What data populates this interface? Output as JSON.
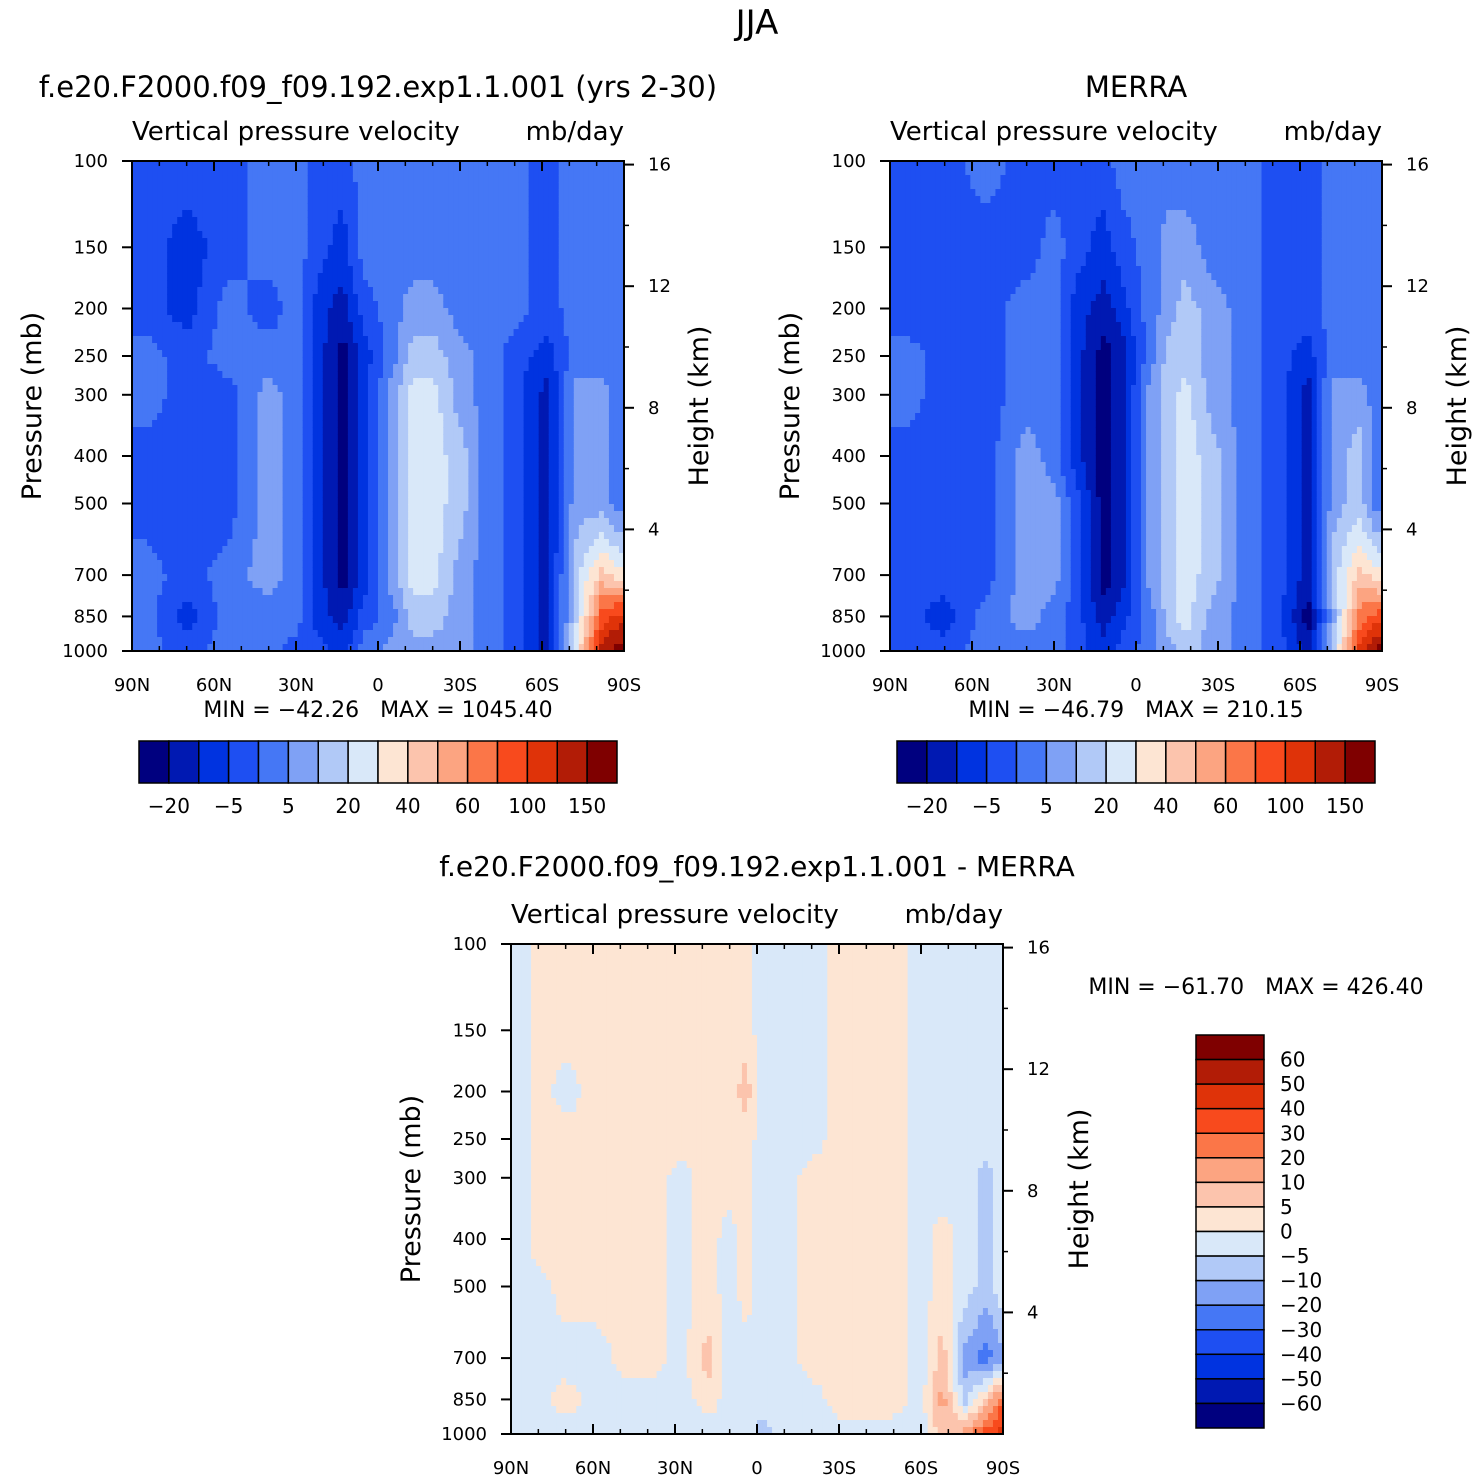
{
  "figure_title": "JJA",
  "palettes": {
    "abs": [
      "#00007f",
      "#0019b2",
      "#0033e0",
      "#1e4ff2",
      "#4577f5",
      "#7fa1f5",
      "#b1c9f7",
      "#d9e8f9",
      "#fde5d3",
      "#fcc4ad",
      "#fca481",
      "#fb7648",
      "#f84a1d",
      "#df3309",
      "#b21c06",
      "#7f0000"
    ],
    "diff": [
      "#00007f",
      "#0019b2",
      "#0033e0",
      "#1e4ff2",
      "#4577f5",
      "#7fa1f5",
      "#b1c9f7",
      "#d9e8f9",
      "#fde5d3",
      "#fcc4ad",
      "#fca481",
      "#fb7648",
      "#f84a1d",
      "#df3309",
      "#b21c06",
      "#7f0000"
    ]
  },
  "chart_data": [
    {
      "type": "heatmap",
      "id": "model",
      "title": "f.e20.F2000.f09_f09.192.exp1.1.001 (yrs 2-30)",
      "subtitle_left": "Vertical pressure velocity",
      "subtitle_right": "mb/day",
      "ylabel": "Pressure (mb)",
      "y2label": "Height (km)",
      "x_ticks": [
        "90N",
        "60N",
        "30N",
        "0",
        "30S",
        "60S",
        "90S"
      ],
      "y_ticks": [
        "100",
        "150",
        "200",
        "250",
        "300",
        "400",
        "500",
        "700",
        "850",
        "1000"
      ],
      "y_tick_values": [
        100,
        150,
        200,
        250,
        300,
        400,
        500,
        700,
        850,
        1000
      ],
      "y2_ticks": [
        "16",
        "12",
        "8",
        "4"
      ],
      "y2_tick_values": [
        16,
        12,
        8,
        4
      ],
      "ylim": [
        1000,
        100
      ],
      "stats": "MIN = -42.26   MAX = 1045.40",
      "colorbar_labels": [
        "-20",
        "-5",
        "5",
        "20",
        "40",
        "60",
        "100",
        "150"
      ],
      "field": [
        {
          "lat": 85,
          "p": [
            3,
            3,
            3,
            4,
            4,
            3,
            3,
            4,
            4,
            4
          ]
        },
        {
          "lat": 70,
          "p": [
            3,
            2,
            2,
            3,
            3,
            3,
            3,
            3,
            2,
            3
          ]
        },
        {
          "lat": 55,
          "p": [
            3,
            3,
            4,
            4,
            3,
            3,
            3,
            4,
            4,
            4
          ]
        },
        {
          "lat": 40,
          "p": [
            4,
            4,
            3,
            4,
            5,
            5,
            5,
            5,
            4,
            4
          ]
        },
        {
          "lat": 30,
          "p": [
            4,
            4,
            4,
            4,
            4,
            4,
            4,
            4,
            4,
            3
          ]
        },
        {
          "lat": 22,
          "p": [
            3,
            3,
            2,
            2,
            2,
            2,
            2,
            2,
            2,
            3
          ]
        },
        {
          "lat": 13,
          "p": [
            3,
            2,
            1,
            0,
            0,
            0,
            0,
            0,
            1,
            2
          ]
        },
        {
          "lat": 5,
          "p": [
            4,
            4,
            3,
            2,
            2,
            2,
            2,
            2,
            3,
            4
          ]
        },
        {
          "lat": -5,
          "p": [
            4,
            4,
            4,
            4,
            5,
            5,
            5,
            5,
            4,
            5
          ]
        },
        {
          "lat": -13,
          "p": [
            4,
            4,
            5,
            6,
            7,
            7,
            7,
            7,
            6,
            5
          ]
        },
        {
          "lat": -20,
          "p": [
            4,
            4,
            5,
            6,
            7,
            7,
            7,
            7,
            6,
            5
          ]
        },
        {
          "lat": -30,
          "p": [
            4,
            4,
            4,
            5,
            5,
            6,
            6,
            5,
            5,
            5
          ]
        },
        {
          "lat": -40,
          "p": [
            4,
            4,
            4,
            4,
            4,
            4,
            4,
            4,
            4,
            4
          ]
        },
        {
          "lat": -50,
          "p": [
            4,
            4,
            4,
            3,
            3,
            3,
            3,
            3,
            3,
            3
          ]
        },
        {
          "lat": -62,
          "p": [
            3,
            3,
            3,
            2,
            1,
            1,
            1,
            1,
            1,
            1
          ]
        },
        {
          "lat": -72,
          "p": [
            4,
            4,
            4,
            4,
            5,
            5,
            5,
            6,
            6,
            7
          ]
        },
        {
          "lat": -82,
          "p": [
            4,
            4,
            4,
            4,
            5,
            5,
            5,
            9,
            12,
            14
          ]
        },
        {
          "lat": -88,
          "p": [
            4,
            4,
            4,
            4,
            4,
            4,
            4,
            8,
            13,
            15
          ]
        }
      ]
    },
    {
      "type": "heatmap",
      "id": "obs",
      "title": "MERRA",
      "subtitle_left": "Vertical pressure velocity",
      "subtitle_right": "mb/day",
      "ylabel": "Pressure (mb)",
      "y2label": "Height (km)",
      "x_ticks": [
        "90N",
        "60N",
        "30N",
        "0",
        "30S",
        "60S",
        "90S"
      ],
      "y_ticks": [
        "100",
        "150",
        "200",
        "250",
        "300",
        "400",
        "500",
        "700",
        "850",
        "1000"
      ],
      "y_tick_values": [
        100,
        150,
        200,
        250,
        300,
        400,
        500,
        700,
        850,
        1000
      ],
      "y2_ticks": [
        "16",
        "12",
        "8",
        "4"
      ],
      "y2_tick_values": [
        16,
        12,
        8,
        4
      ],
      "ylim": [
        1000,
        100
      ],
      "stats": "MIN = -46.79   MAX = 210.15",
      "colorbar_labels": [
        "-20",
        "-5",
        "5",
        "20",
        "40",
        "60",
        "100",
        "150"
      ],
      "field": [
        {
          "lat": 85,
          "p": [
            3,
            3,
            3,
            4,
            4,
            3,
            3,
            3,
            3,
            3
          ]
        },
        {
          "lat": 70,
          "p": [
            3,
            3,
            3,
            3,
            3,
            3,
            3,
            3,
            2,
            3
          ]
        },
        {
          "lat": 55,
          "p": [
            4,
            3,
            3,
            3,
            3,
            3,
            3,
            3,
            4,
            4
          ]
        },
        {
          "lat": 40,
          "p": [
            3,
            3,
            4,
            4,
            4,
            5,
            5,
            5,
            5,
            4
          ]
        },
        {
          "lat": 30,
          "p": [
            3,
            4,
            4,
            4,
            4,
            4,
            5,
            5,
            4,
            4
          ]
        },
        {
          "lat": 22,
          "p": [
            3,
            3,
            2,
            2,
            2,
            2,
            3,
            3,
            3,
            3
          ]
        },
        {
          "lat": 12,
          "p": [
            3,
            2,
            1,
            0,
            0,
            0,
            0,
            0,
            1,
            2
          ]
        },
        {
          "lat": 5,
          "p": [
            4,
            3,
            2,
            1,
            1,
            1,
            1,
            1,
            2,
            3
          ]
        },
        {
          "lat": -5,
          "p": [
            4,
            4,
            4,
            4,
            5,
            5,
            5,
            5,
            4,
            4
          ]
        },
        {
          "lat": -12,
          "p": [
            4,
            5,
            5,
            6,
            6,
            6,
            6,
            6,
            6,
            5
          ]
        },
        {
          "lat": -18,
          "p": [
            4,
            5,
            6,
            6,
            7,
            7,
            7,
            7,
            7,
            6
          ]
        },
        {
          "lat": -28,
          "p": [
            4,
            4,
            5,
            5,
            5,
            6,
            6,
            6,
            5,
            5
          ]
        },
        {
          "lat": -40,
          "p": [
            4,
            4,
            4,
            4,
            4,
            4,
            4,
            4,
            4,
            4
          ]
        },
        {
          "lat": -52,
          "p": [
            3,
            3,
            3,
            3,
            3,
            3,
            3,
            3,
            3,
            3
          ]
        },
        {
          "lat": -63,
          "p": [
            3,
            3,
            3,
            2,
            1,
            1,
            1,
            1,
            0,
            1
          ]
        },
        {
          "lat": -72,
          "p": [
            4,
            4,
            4,
            4,
            5,
            5,
            5,
            6,
            5,
            6
          ]
        },
        {
          "lat": -82,
          "p": [
            4,
            4,
            4,
            4,
            5,
            6,
            6,
            9,
            11,
            13
          ]
        },
        {
          "lat": -88,
          "p": [
            4,
            4,
            4,
            4,
            4,
            4,
            4,
            8,
            12,
            15
          ]
        }
      ]
    },
    {
      "type": "heatmap",
      "id": "diff",
      "title": "f.e20.F2000.f09_f09.192.exp1.1.001 - MERRA",
      "subtitle_left": "Vertical pressure velocity",
      "subtitle_right": "mb/day",
      "ylabel": "Pressure (mb)",
      "y2label": "Height (km)",
      "x_ticks": [
        "90N",
        "60N",
        "30N",
        "0",
        "30S",
        "60S",
        "90S"
      ],
      "y_ticks": [
        "100",
        "150",
        "200",
        "250",
        "300",
        "400",
        "500",
        "700",
        "850",
        "1000"
      ],
      "y_tick_values": [
        100,
        150,
        200,
        250,
        300,
        400,
        500,
        700,
        850,
        1000
      ],
      "y2_ticks": [
        "16",
        "12",
        "8",
        "4"
      ],
      "y2_tick_values": [
        16,
        12,
        8,
        4
      ],
      "ylim": [
        1000,
        100
      ],
      "stats": "MIN = -61.70   MAX = 426.40",
      "colorbar_labels": [
        "60",
        "50",
        "40",
        "30",
        "20",
        "10",
        "5",
        "0",
        "-5",
        "-10",
        "-20",
        "-30",
        "-40",
        "-50",
        "-60"
      ],
      "field": [
        {
          "lat": 87,
          "p": [
            7,
            7,
            7,
            7,
            7,
            7,
            7,
            7,
            7,
            7
          ]
        },
        {
          "lat": 80,
          "p": [
            8,
            8,
            8,
            8,
            8,
            8,
            7,
            7,
            7,
            7
          ]
        },
        {
          "lat": 70,
          "p": [
            8,
            8,
            7,
            8,
            8,
            8,
            8,
            7,
            8,
            7
          ]
        },
        {
          "lat": 58,
          "p": [
            8,
            8,
            8,
            8,
            8,
            8,
            8,
            7,
            7,
            7
          ]
        },
        {
          "lat": 48,
          "p": [
            8,
            8,
            8,
            8,
            8,
            8,
            8,
            8,
            7,
            7
          ]
        },
        {
          "lat": 38,
          "p": [
            8,
            8,
            8,
            8,
            8,
            8,
            8,
            8,
            7,
            7
          ]
        },
        {
          "lat": 28,
          "p": [
            8,
            8,
            8,
            8,
            7,
            7,
            7,
            7,
            7,
            7
          ]
        },
        {
          "lat": 18,
          "p": [
            8,
            8,
            8,
            8,
            8,
            8,
            8,
            9,
            8,
            7
          ]
        },
        {
          "lat": 10,
          "p": [
            8,
            8,
            8,
            8,
            8,
            7,
            7,
            7,
            7,
            7
          ]
        },
        {
          "lat": 4,
          "p": [
            8,
            8,
            9,
            8,
            8,
            8,
            8,
            7,
            7,
            7
          ]
        },
        {
          "lat": -2,
          "p": [
            7,
            7,
            7,
            7,
            7,
            7,
            7,
            7,
            7,
            6
          ]
        },
        {
          "lat": -10,
          "p": [
            7,
            7,
            7,
            7,
            7,
            7,
            7,
            7,
            7,
            7
          ]
        },
        {
          "lat": -20,
          "p": [
            7,
            7,
            7,
            7,
            8,
            8,
            8,
            8,
            7,
            7
          ]
        },
        {
          "lat": -30,
          "p": [
            8,
            8,
            8,
            8,
            8,
            8,
            8,
            8,
            8,
            7
          ]
        },
        {
          "lat": -40,
          "p": [
            8,
            8,
            8,
            8,
            8,
            8,
            8,
            8,
            8,
            7
          ]
        },
        {
          "lat": -50,
          "p": [
            8,
            8,
            8,
            8,
            8,
            8,
            8,
            8,
            8,
            7
          ]
        },
        {
          "lat": -60,
          "p": [
            7,
            7,
            7,
            7,
            7,
            7,
            7,
            7,
            7,
            7
          ]
        },
        {
          "lat": -68,
          "p": [
            7,
            7,
            7,
            7,
            7,
            8,
            8,
            9,
            10,
            9
          ]
        },
        {
          "lat": -76,
          "p": [
            7,
            7,
            7,
            7,
            7,
            7,
            7,
            5,
            6,
            10
          ]
        },
        {
          "lat": -84,
          "p": [
            7,
            7,
            7,
            7,
            6,
            6,
            6,
            4,
            9,
            12
          ]
        },
        {
          "lat": -89,
          "p": [
            7,
            7,
            7,
            7,
            7,
            7,
            7,
            5,
            11,
            13
          ]
        }
      ]
    }
  ]
}
